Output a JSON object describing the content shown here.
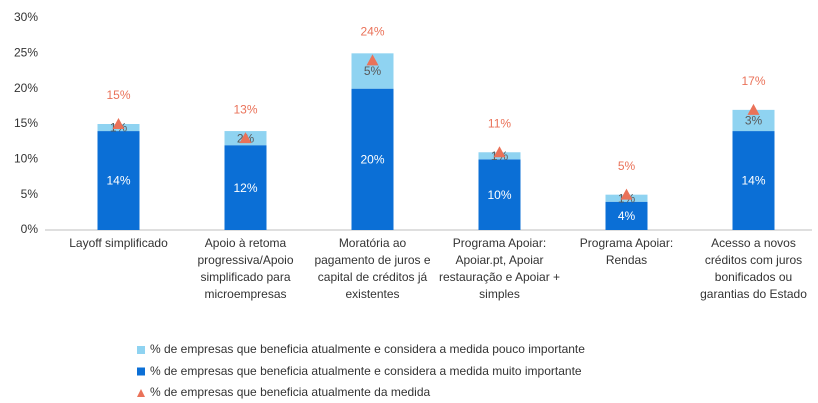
{
  "chart_data": {
    "type": "bar",
    "stacked": true,
    "categories": [
      "Layoff simplificado",
      "Apoio à retoma progressiva/Apoio simplificado para microempresas",
      "Moratória ao pagamento de juros e capital de créditos já existentes",
      "Programa Apoiar: Apoiar.pt, Apoiar restauração e Apoiar + simples",
      "Programa Apoiar: Rendas",
      "Acesso a novos créditos com juros bonificados ou garantias do Estado"
    ],
    "series": [
      {
        "name": "% de empresas que beneficia atualmente e considera a medida pouco importante",
        "type": "bar",
        "color": "#8fd3f1",
        "label_color": "#595959",
        "values": [
          1,
          2,
          5,
          1,
          1,
          3
        ],
        "value_labels": [
          "1%",
          "2%",
          "5%",
          "1%",
          "1%",
          "3%"
        ]
      },
      {
        "name": "% de empresas que beneficia atualmente e considera a medida muito importante",
        "type": "bar",
        "color": "#0b6fd6",
        "label_color": "#ffffff",
        "values": [
          14,
          12,
          20,
          10,
          4,
          14
        ],
        "value_labels": [
          "14%",
          "12%",
          "20%",
          "10%",
          "4%",
          "14%"
        ]
      },
      {
        "name": "% de empresas que beneficia atualmente da medida",
        "type": "marker",
        "color": "#ea7259",
        "label_color": "#ea7259",
        "values": [
          15,
          13,
          24,
          11,
          5,
          17
        ],
        "value_labels": [
          "15%",
          "13%",
          "24%",
          "11%",
          "5%",
          "17%"
        ]
      }
    ],
    "ylim": [
      0,
      30
    ],
    "yticks": [
      {
        "value": 0,
        "label": "0%"
      },
      {
        "value": 5,
        "label": "5%"
      },
      {
        "value": 10,
        "label": "10%"
      },
      {
        "value": 15,
        "label": "15%"
      },
      {
        "value": 20,
        "label": "20%"
      },
      {
        "value": 25,
        "label": "25%"
      },
      {
        "value": 30,
        "label": "30%"
      }
    ],
    "grid": false,
    "legend": "bottom"
  }
}
